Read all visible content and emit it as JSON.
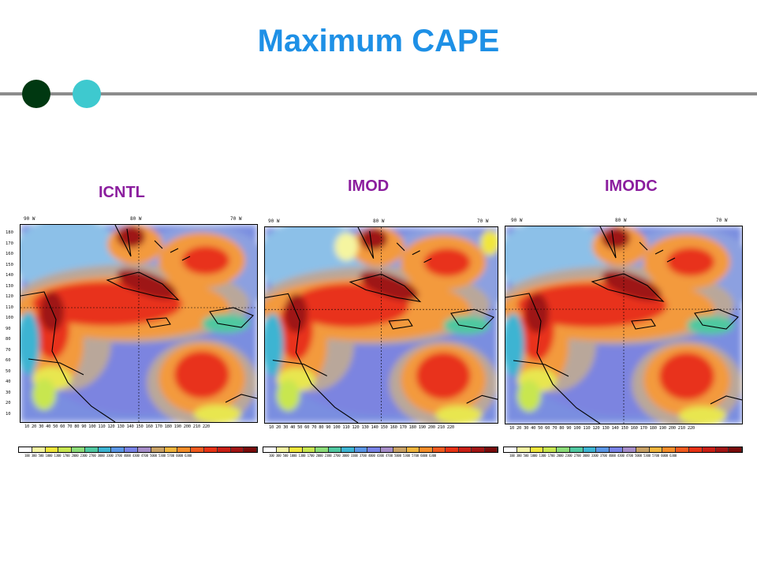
{
  "slide": {
    "title": "Maximum CAPE"
  },
  "panels": [
    {
      "label": "ICNTL",
      "lon_labels": [
        "90 W",
        "80 W",
        "70 W"
      ]
    },
    {
      "label": "IMOD",
      "lon_labels": [
        "90 W",
        "80 W",
        "70 W"
      ]
    },
    {
      "label": "IMODC",
      "lon_labels": [
        "90 W",
        "80 W",
        "70 W"
      ]
    }
  ],
  "y_ticks": [
    "180",
    "170",
    "160",
    "150",
    "140",
    "130",
    "120",
    "110",
    "100",
    "90",
    "80",
    "70",
    "60",
    "50",
    "40",
    "30",
    "20",
    "10"
  ],
  "x_ticks": "10 20 30 40 50 60 70 80 90 100 110 120 130 140 150 160 170 180 190 200 210 220",
  "colorbar": {
    "colors": [
      "#ffffff",
      "#f5f5a0",
      "#f0e63c",
      "#c8e650",
      "#8cdc78",
      "#50c8a0",
      "#3cb4d2",
      "#5a96e6",
      "#7882e6",
      "#a58cc8",
      "#c8a064",
      "#f0b43c",
      "#f58c28",
      "#f05a1e",
      "#e63214",
      "#c81e14",
      "#a01414",
      "#780a0a"
    ],
    "labels": [
      "100",
      "300",
      "500",
      "1000",
      "1300",
      "1700",
      "2000",
      "2300",
      "2700",
      "3000",
      "3300",
      "3700",
      "4000",
      "4300",
      "4700",
      "5000",
      "5300",
      "5700",
      "6000",
      "6300"
    ]
  },
  "colors": {
    "title": "#1e90e6",
    "panel_label": "#8b1e9e",
    "rule": "#8c8c8c",
    "dot_dark": "#003811",
    "dot_cyan": "#3ec9cf"
  }
}
